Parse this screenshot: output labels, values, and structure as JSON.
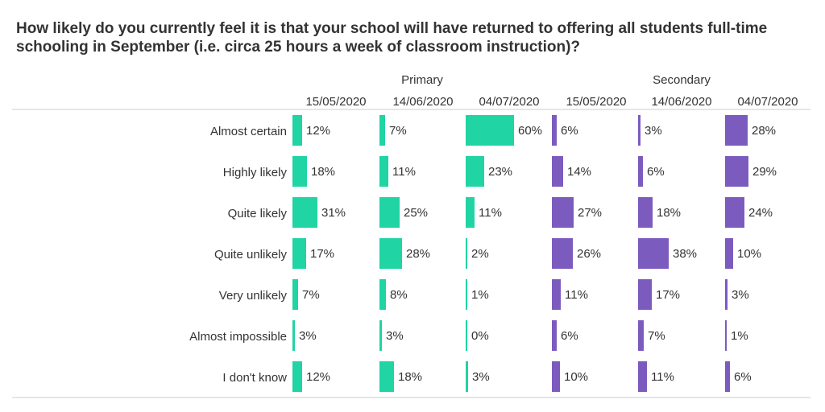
{
  "chart_data": {
    "type": "bar",
    "title": "How likely do you currently feel it is that your school will have returned to offering all students full-time schooling in September (i.e. circa 25 hours a week of classroom instruction)?",
    "orientation": "horizontal-small-multiples",
    "categories": [
      "Almost certain",
      "Highly likely",
      "Quite likely",
      "Quite unlikely",
      "Very unlikely",
      "Almost impossible",
      "I don't know"
    ],
    "groups": [
      {
        "name": "Primary",
        "color": "#20d4a4",
        "series": [
          {
            "name": "15/05/2020",
            "values": [
              12,
              18,
              31,
              17,
              7,
              3,
              12
            ]
          },
          {
            "name": "14/06/2020",
            "values": [
              7,
              11,
              25,
              28,
              8,
              3,
              18
            ]
          },
          {
            "name": "04/07/2020",
            "values": [
              60,
              23,
              11,
              2,
              1,
              0,
              3
            ]
          }
        ]
      },
      {
        "name": "Secondary",
        "color": "#7c5bbf",
        "series": [
          {
            "name": "15/05/2020",
            "values": [
              6,
              14,
              27,
              26,
              11,
              6,
              10
            ]
          },
          {
            "name": "14/06/2020",
            "values": [
              3,
              6,
              18,
              38,
              17,
              7,
              11
            ]
          },
          {
            "name": "04/07/2020",
            "values": [
              28,
              29,
              24,
              10,
              3,
              1,
              6
            ]
          }
        ]
      }
    ],
    "value_suffix": "%",
    "xlim": [
      0,
      100
    ]
  }
}
